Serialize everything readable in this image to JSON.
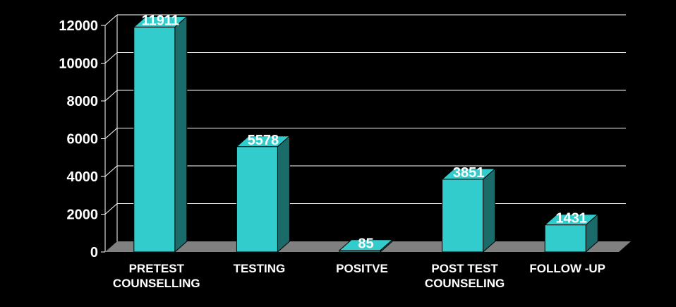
{
  "chart_data": {
    "type": "bar",
    "style": "3d-column",
    "title": "",
    "xlabel": "",
    "ylabel": "",
    "categories": [
      [
        "PRETEST",
        "COUNSELLING"
      ],
      [
        "TESTING"
      ],
      [
        "POSITVE"
      ],
      [
        "POST TEST",
        "COUNSELING"
      ],
      [
        "FOLLOW -UP"
      ]
    ],
    "values": [
      11911,
      5578,
      85,
      3851,
      1431
    ],
    "value_labels": [
      "11911",
      "5578",
      "85",
      "3851",
      "1431"
    ],
    "yticks": [
      0,
      2000,
      4000,
      6000,
      8000,
      10000,
      12000
    ],
    "ytick_labels": [
      "0",
      "2000",
      "4000",
      "6000",
      "8000",
      "10000",
      "12000"
    ],
    "ylim": [
      0,
      12000
    ],
    "grid": true,
    "legend": "none",
    "colors": {
      "background": "#000000",
      "bar_front": "#33cccc",
      "bar_side": "#1c6b6b",
      "bar_top": "#33cccc",
      "floor": "#808080",
      "grid": "#ffffff",
      "text": "#ffffff"
    }
  }
}
